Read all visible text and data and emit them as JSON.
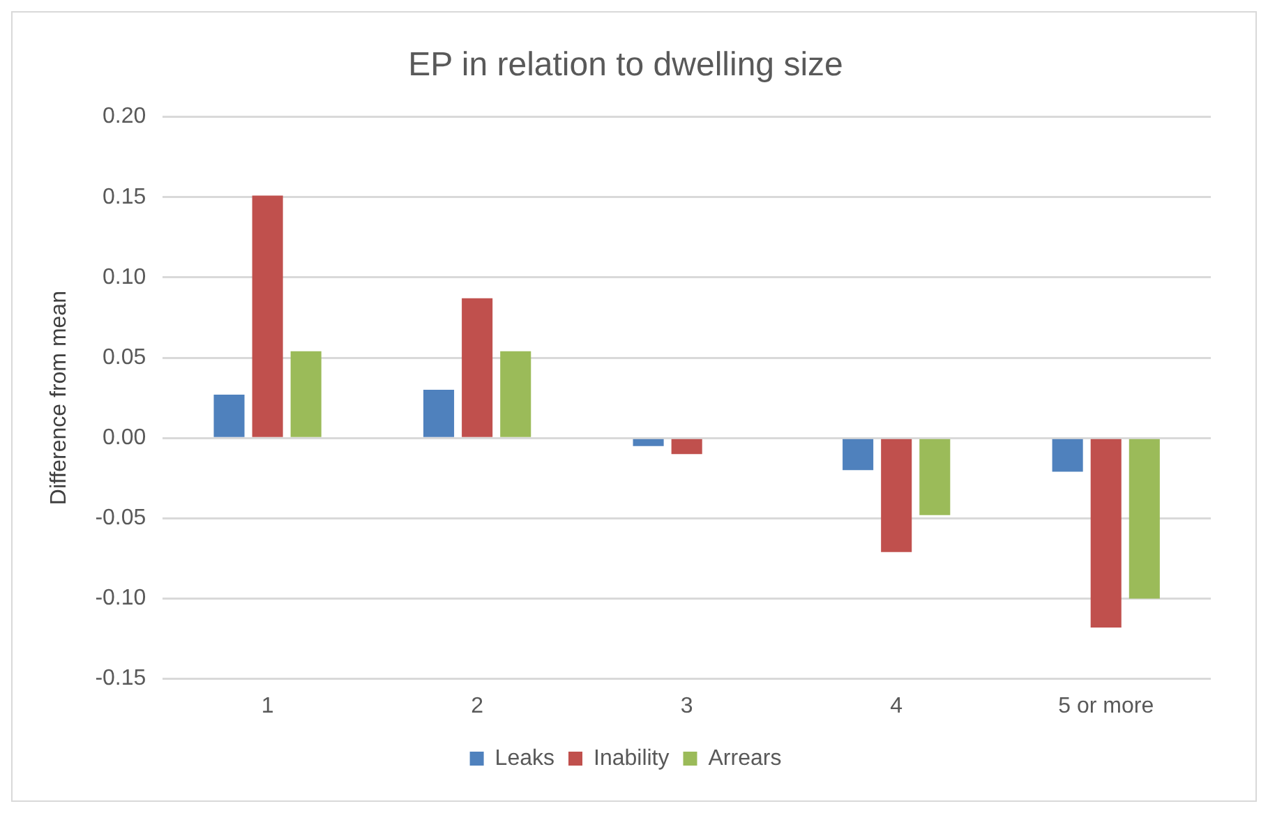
{
  "chart_data": {
    "type": "bar",
    "title": "EP in relation to dwelling size",
    "ylabel": "Difference from mean",
    "categories": [
      "1",
      "2",
      "3",
      "4",
      "5 or more"
    ],
    "series": [
      {
        "name": "Leaks",
        "color": "#4f81bd",
        "values": [
          0.027,
          0.03,
          -0.005,
          -0.02,
          -0.021
        ]
      },
      {
        "name": "Inability",
        "color": "#c0504d",
        "values": [
          0.151,
          0.087,
          -0.01,
          -0.071,
          -0.118
        ]
      },
      {
        "name": "Arrears",
        "color": "#9bbb59",
        "values": [
          0.054,
          0.054,
          0,
          -0.048,
          -0.1
        ]
      }
    ],
    "ylim": [
      -0.15,
      0.2
    ],
    "yticks": [
      {
        "value": -0.15,
        "label": "-0.15"
      },
      {
        "value": -0.1,
        "label": "-0.10"
      },
      {
        "value": -0.05,
        "label": "-0.05"
      },
      {
        "value": 0,
        "label": "0.00"
      },
      {
        "value": 0.05,
        "label": "0.05"
      },
      {
        "value": 0.1,
        "label": "0.10"
      },
      {
        "value": 0.15,
        "label": "0.15"
      },
      {
        "value": 0.2,
        "label": "0.20"
      }
    ],
    "grid": "y",
    "legend": "bottom"
  }
}
